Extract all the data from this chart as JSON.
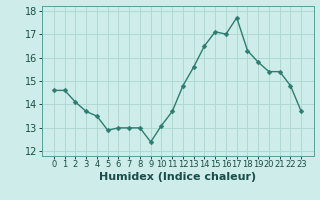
{
  "x": [
    0,
    1,
    2,
    3,
    4,
    5,
    6,
    7,
    8,
    9,
    10,
    11,
    12,
    13,
    14,
    15,
    16,
    17,
    18,
    19,
    20,
    21,
    22,
    23
  ],
  "y": [
    14.6,
    14.6,
    14.1,
    13.7,
    13.5,
    12.9,
    13.0,
    13.0,
    13.0,
    12.4,
    13.1,
    13.7,
    14.8,
    15.6,
    16.5,
    17.1,
    17.0,
    17.7,
    16.3,
    15.8,
    15.4,
    15.4,
    14.8,
    13.7
  ],
  "line_color": "#2d7d6e",
  "marker": "D",
  "marker_size": 2.5,
  "line_width": 1.0,
  "bg_color": "#ceecea",
  "grid_color": "#b0d8d5",
  "xlabel": "Humidex (Indice chaleur)",
  "xlabel_fontsize": 8,
  "tick_fontsize": 7,
  "ylim": [
    11.8,
    18.2
  ],
  "yticks": [
    12,
    13,
    14,
    15,
    16,
    17,
    18
  ],
  "xticks": [
    0,
    1,
    2,
    3,
    4,
    5,
    6,
    7,
    8,
    9,
    10,
    11,
    12,
    13,
    14,
    15,
    16,
    17,
    18,
    19,
    20,
    21,
    22,
    23
  ],
  "spine_color": "#5a9e99",
  "text_color": "#1a4d47"
}
